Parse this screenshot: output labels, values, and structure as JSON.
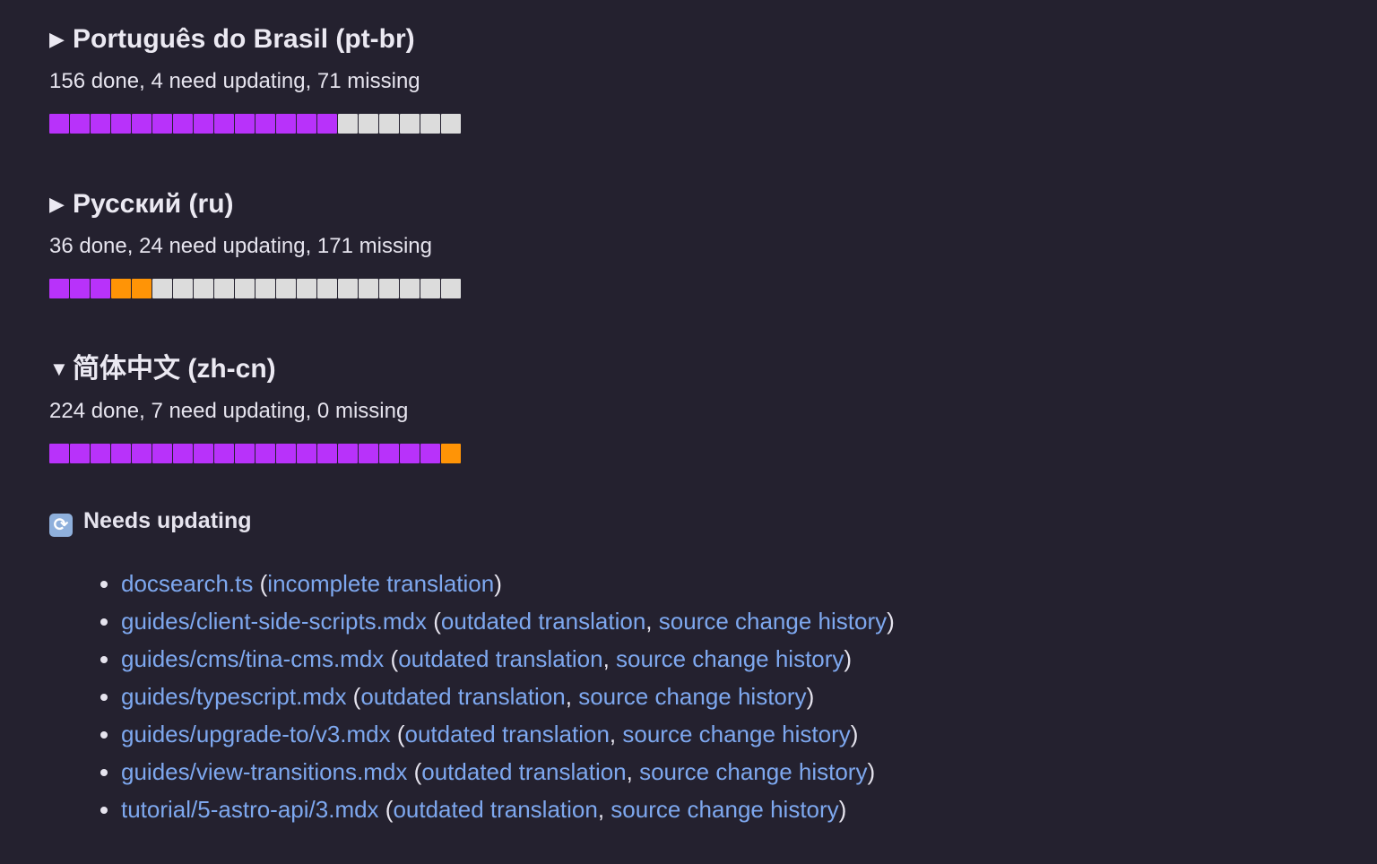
{
  "languages": [
    {
      "title": "Português do Brasil (pt-br)",
      "expanded": false,
      "toggle": "▶",
      "stats": "156 done, 4 need updating, 71 missing",
      "progress": {
        "done": 14,
        "outdated": 0,
        "missing": 6,
        "total_segments": 20
      }
    },
    {
      "title": "Русский (ru)",
      "expanded": false,
      "toggle": "▶",
      "stats": "36 done, 24 need updating, 171 missing",
      "progress": {
        "done": 3,
        "outdated": 2,
        "missing": 15,
        "total_segments": 20
      }
    },
    {
      "title": "简体中文 (zh-cn)",
      "expanded": true,
      "toggle": "▼",
      "stats": "224 done, 7 need updating, 0 missing",
      "progress": {
        "done": 19,
        "outdated": 1,
        "missing": 0,
        "total_segments": 20
      }
    }
  ],
  "colors": {
    "done": "#b832fa",
    "outdated": "#ff9406",
    "missing": "#dcdcdc",
    "link": "#7ea8ef",
    "background": "#24212f"
  },
  "needs_updating": {
    "icon": "arrows-counterclockwise-icon",
    "icon_glyph": "🔄",
    "title": "Needs updating",
    "items": [
      {
        "file": "docsearch.ts",
        "links": [
          "incomplete translation"
        ]
      },
      {
        "file": "guides/client-side-scripts.mdx",
        "links": [
          "outdated translation",
          "source change history"
        ]
      },
      {
        "file": "guides/cms/tina-cms.mdx",
        "links": [
          "outdated translation",
          "source change history"
        ]
      },
      {
        "file": "guides/typescript.mdx",
        "links": [
          "outdated translation",
          "source change history"
        ]
      },
      {
        "file": "guides/upgrade-to/v3.mdx",
        "links": [
          "outdated translation",
          "source change history"
        ]
      },
      {
        "file": "guides/view-transitions.mdx",
        "links": [
          "outdated translation",
          "source change history"
        ]
      },
      {
        "file": "tutorial/5-astro-api/3.mdx",
        "links": [
          "outdated translation",
          "source change history"
        ]
      }
    ]
  }
}
